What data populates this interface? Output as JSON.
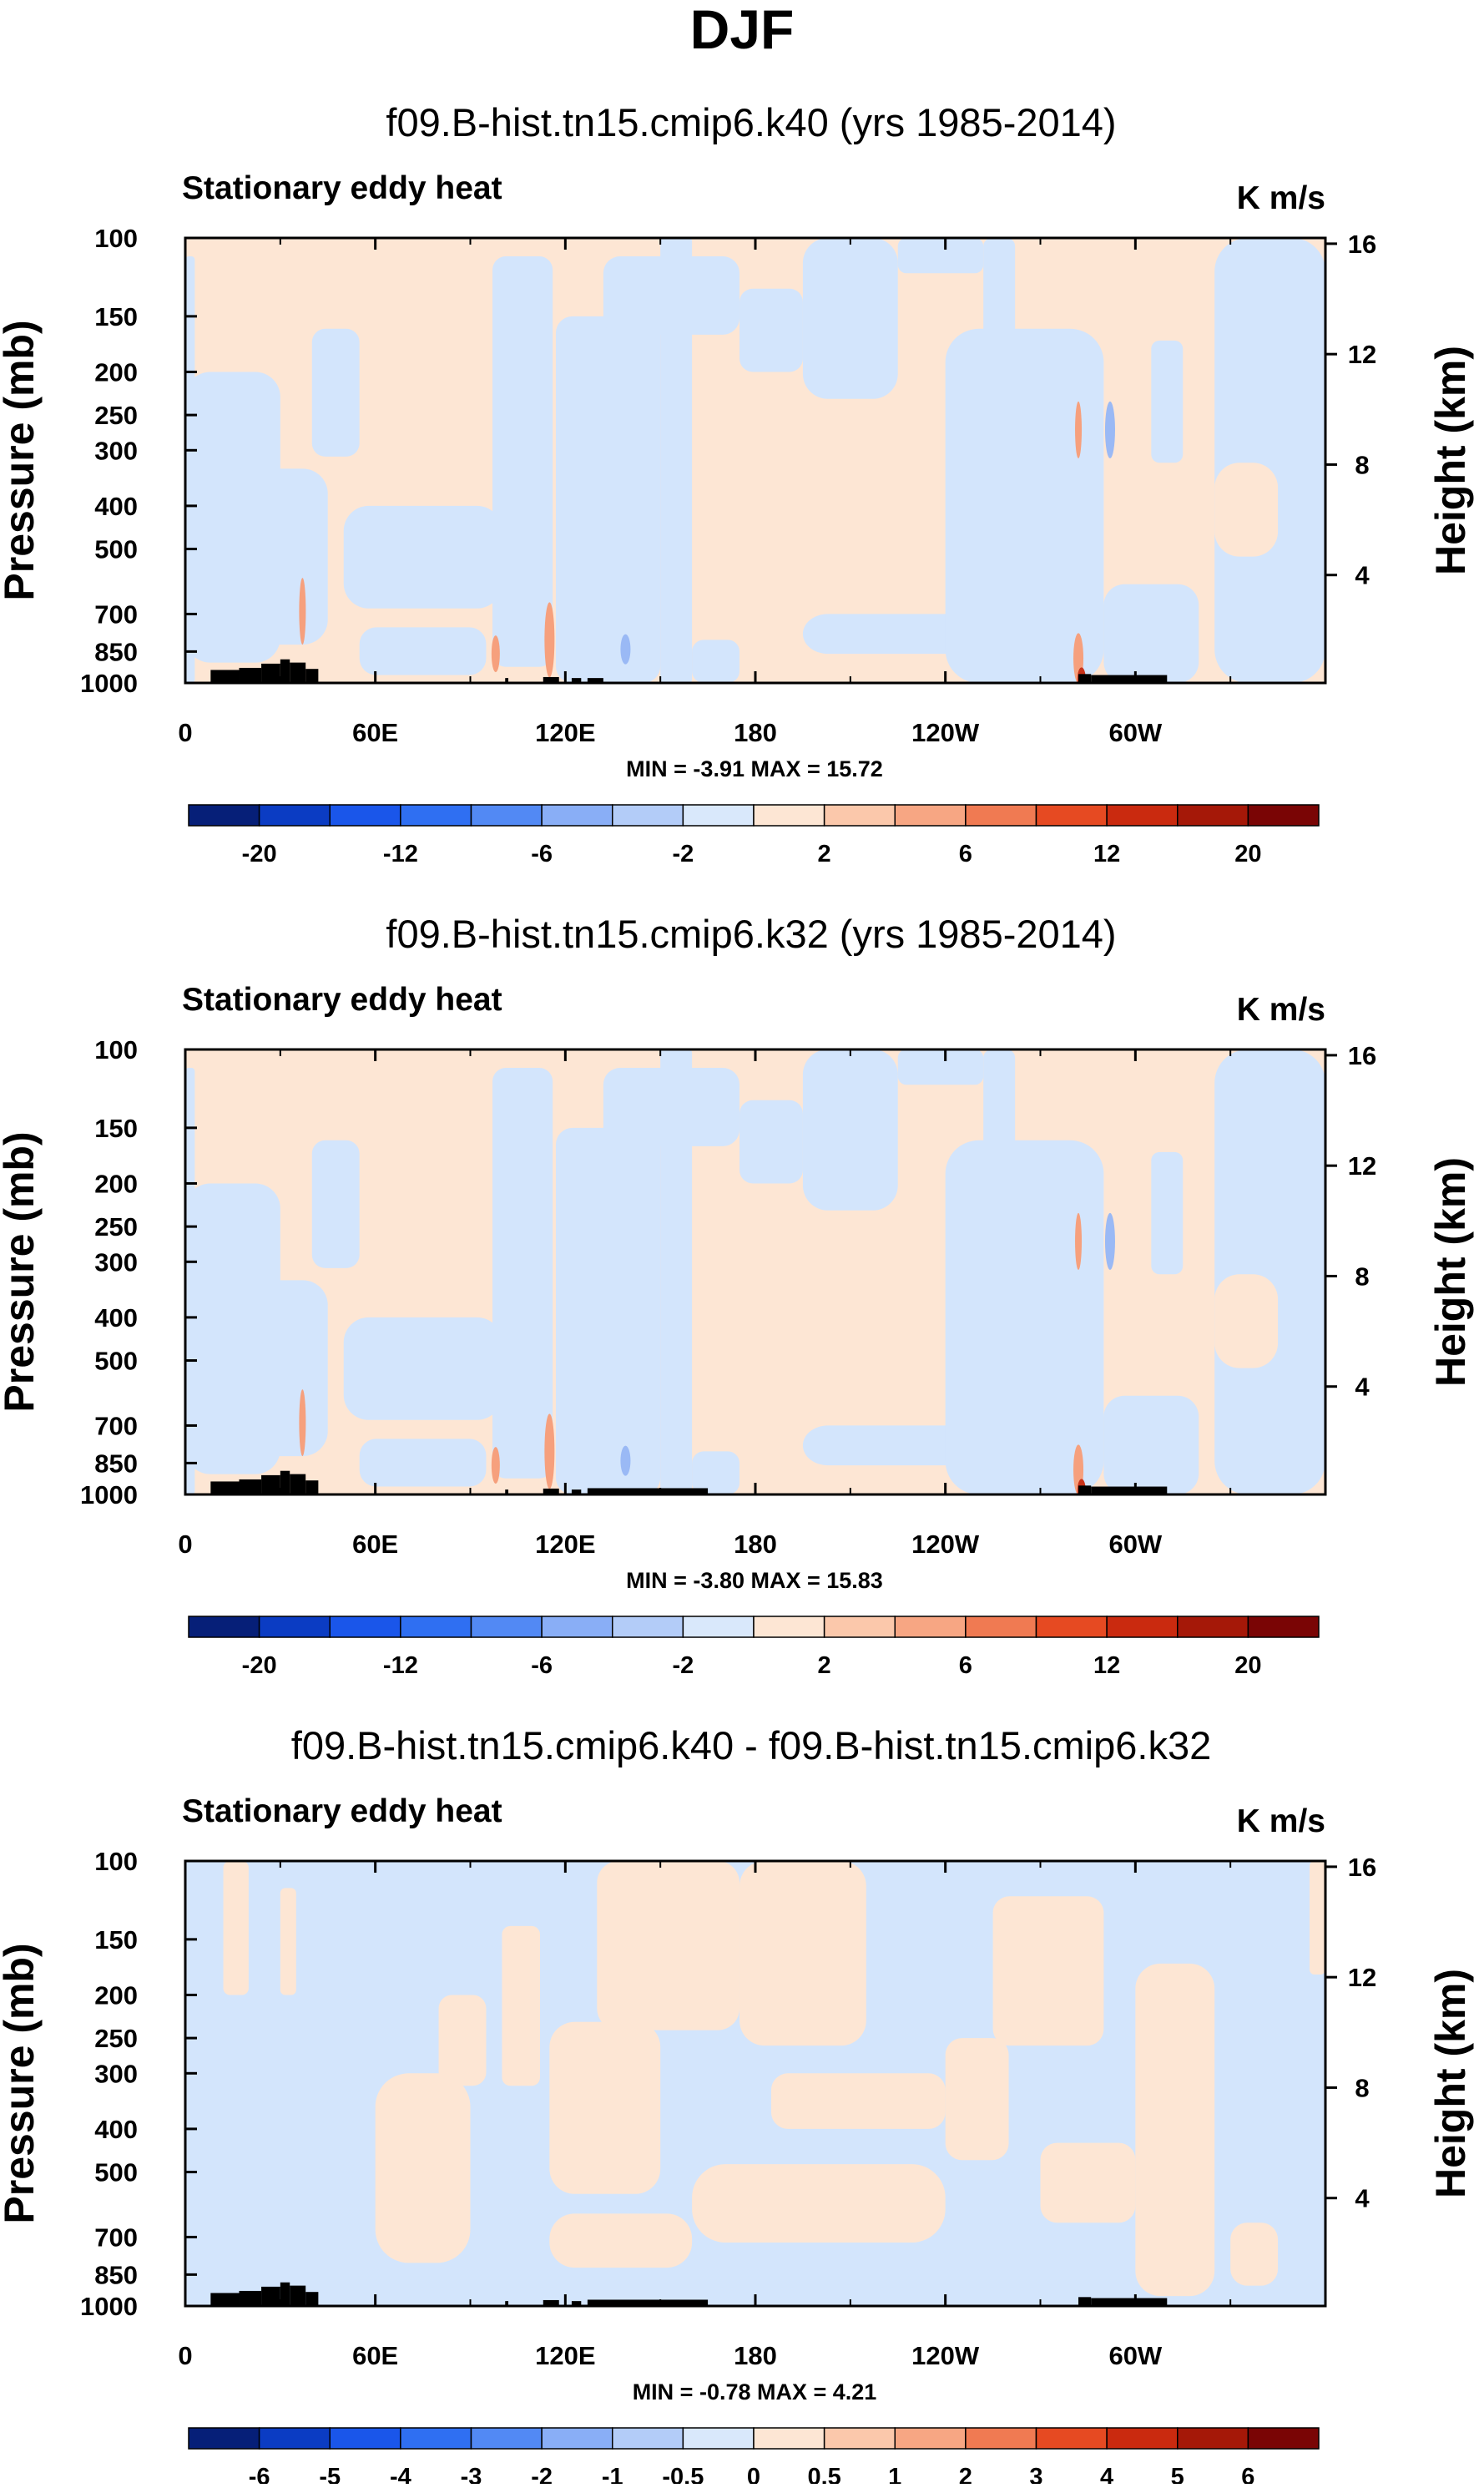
{
  "figure": {
    "title": "DJF",
    "colors": {
      "land": "#000000",
      "neg_fill": "#d3e5fc",
      "pos_fill": "#fde6d4",
      "neg_strong": "#9ab9f5",
      "pos_strong": "#f6a07d",
      "pos_strongest": "#c8331a",
      "frame": "#000000"
    }
  },
  "chart_data": [
    {
      "type": "contour",
      "title": "f09.B-hist.tn15.cmip6.k40 (yrs 1985-2014)",
      "left_string": "Stationary eddy heat",
      "right_string": "K m/s",
      "xlabel": "",
      "ylabel": "Pressure (mb)",
      "ylabel_right": "Height (km)",
      "x_ticks": [
        "0",
        "60E",
        "120E",
        "180",
        "120W",
        "60W"
      ],
      "x_tick_values": [
        0,
        60,
        120,
        180,
        240,
        300
      ],
      "xlim": [
        0,
        360
      ],
      "y_ticks": [
        "100",
        "150",
        "200",
        "250",
        "300",
        "400",
        "500",
        "700",
        "850",
        "1000"
      ],
      "y_tick_values": [
        100,
        150,
        200,
        250,
        300,
        400,
        500,
        700,
        850,
        1000
      ],
      "ylim": [
        1000,
        100
      ],
      "y_right_ticks": [
        "4",
        "8",
        "12",
        "16"
      ],
      "y_right_values": [
        4,
        8,
        12,
        16
      ],
      "min": -3.91,
      "max": 15.72,
      "stats_text": "MIN = -3.91  MAX = 15.72",
      "colorbar": {
        "labels": [
          "-20",
          "-12",
          "-6",
          "-2",
          "2",
          "6",
          "12",
          "20"
        ],
        "colors": [
          "#061f78",
          "#0b3cc3",
          "#1a56ea",
          "#2f6ff2",
          "#5289f4",
          "#89aef6",
          "#b3ccf8",
          "#d9e8fb",
          "#fde6d4",
          "#fbc8ab",
          "#f7a683",
          "#f07a52",
          "#e64a22",
          "#ca2a0f",
          "#a51808",
          "#7a0505"
        ]
      }
    },
    {
      "type": "contour",
      "title": "f09.B-hist.tn15.cmip6.k32 (yrs 1985-2014)",
      "left_string": "Stationary eddy heat",
      "right_string": "K m/s",
      "xlabel": "",
      "ylabel": "Pressure (mb)",
      "ylabel_right": "Height (km)",
      "x_ticks": [
        "0",
        "60E",
        "120E",
        "180",
        "120W",
        "60W"
      ],
      "x_tick_values": [
        0,
        60,
        120,
        180,
        240,
        300
      ],
      "xlim": [
        0,
        360
      ],
      "y_ticks": [
        "100",
        "150",
        "200",
        "250",
        "300",
        "400",
        "500",
        "700",
        "850",
        "1000"
      ],
      "y_tick_values": [
        100,
        150,
        200,
        250,
        300,
        400,
        500,
        700,
        850,
        1000
      ],
      "ylim": [
        1000,
        100
      ],
      "y_right_ticks": [
        "4",
        "8",
        "12",
        "16"
      ],
      "y_right_values": [
        4,
        8,
        12,
        16
      ],
      "min": -3.8,
      "max": 15.83,
      "stats_text": "MIN = -3.80  MAX = 15.83",
      "colorbar": {
        "labels": [
          "-20",
          "-12",
          "-6",
          "-2",
          "2",
          "6",
          "12",
          "20"
        ],
        "colors": [
          "#061f78",
          "#0b3cc3",
          "#1a56ea",
          "#2f6ff2",
          "#5289f4",
          "#89aef6",
          "#b3ccf8",
          "#d9e8fb",
          "#fde6d4",
          "#fbc8ab",
          "#f7a683",
          "#f07a52",
          "#e64a22",
          "#ca2a0f",
          "#a51808",
          "#7a0505"
        ]
      }
    },
    {
      "type": "contour",
      "title": "f09.B-hist.tn15.cmip6.k40 - f09.B-hist.tn15.cmip6.k32",
      "left_string": "Stationary eddy heat",
      "right_string": "K m/s",
      "xlabel": "",
      "ylabel": "Pressure (mb)",
      "ylabel_right": "Height (km)",
      "x_ticks": [
        "0",
        "60E",
        "120E",
        "180",
        "120W",
        "60W"
      ],
      "x_tick_values": [
        0,
        60,
        120,
        180,
        240,
        300
      ],
      "xlim": [
        0,
        360
      ],
      "y_ticks": [
        "100",
        "150",
        "200",
        "250",
        "300",
        "400",
        "500",
        "700",
        "850",
        "1000"
      ],
      "y_tick_values": [
        100,
        150,
        200,
        250,
        300,
        400,
        500,
        700,
        850,
        1000
      ],
      "ylim": [
        1000,
        100
      ],
      "y_right_ticks": [
        "4",
        "8",
        "12",
        "16"
      ],
      "y_right_values": [
        4,
        8,
        12,
        16
      ],
      "min": -0.78,
      "max": 4.21,
      "stats_text": "MIN = -0.78  MAX =  4.21",
      "colorbar": {
        "labels": [
          "-6",
          "-5",
          "-4",
          "-3",
          "-2",
          "-1",
          "-0.5",
          "0",
          "0.5",
          "1",
          "2",
          "3",
          "4",
          "5",
          "6"
        ],
        "colors": [
          "#061f78",
          "#0b3cc3",
          "#1a56ea",
          "#2f6ff2",
          "#5289f4",
          "#89aef6",
          "#b3ccf8",
          "#d9e8fb",
          "#fde6d4",
          "#fbc8ab",
          "#f7a683",
          "#f07a52",
          "#e64a22",
          "#ca2a0f",
          "#a51808",
          "#7a0505"
        ]
      }
    }
  ]
}
